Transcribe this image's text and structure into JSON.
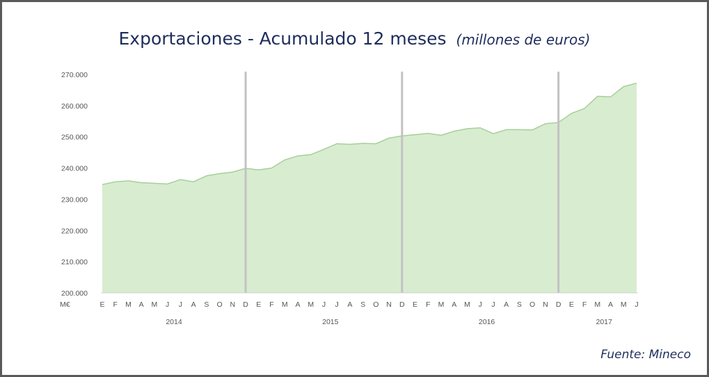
{
  "title": "Exportaciones - Acumulado 12 meses",
  "title_unit": "(millones de euros)",
  "source": "Fuente: Mineco",
  "chart_data": {
    "type": "area",
    "ylabel": "M€",
    "ylim": [
      200000,
      270000
    ],
    "yticks": [
      200000,
      210000,
      220000,
      230000,
      240000,
      250000,
      260000,
      270000
    ],
    "ytick_labels": [
      "200.000",
      "210.000",
      "220.000",
      "230.000",
      "240.000",
      "250.000",
      "260.000",
      "270.000"
    ],
    "x": [
      "2014-01",
      "2014-02",
      "2014-03",
      "2014-04",
      "2014-05",
      "2014-06",
      "2014-07",
      "2014-08",
      "2014-09",
      "2014-10",
      "2014-11",
      "2014-12",
      "2015-01",
      "2015-02",
      "2015-03",
      "2015-04",
      "2015-05",
      "2015-06",
      "2015-07",
      "2015-08",
      "2015-09",
      "2015-10",
      "2015-11",
      "2015-12",
      "2016-01",
      "2016-02",
      "2016-03",
      "2016-04",
      "2016-05",
      "2016-06",
      "2016-07",
      "2016-08",
      "2016-09",
      "2016-10",
      "2016-11",
      "2016-12",
      "2017-01",
      "2017-02",
      "2017-03",
      "2017-04",
      "2017-05",
      "2017-06"
    ],
    "month_labels": [
      "E",
      "F",
      "M",
      "A",
      "M",
      "J",
      "J",
      "A",
      "S",
      "O",
      "N",
      "D",
      "E",
      "F",
      "M",
      "A",
      "M",
      "J",
      "J",
      "A",
      "S",
      "O",
      "N",
      "D",
      "E",
      "F",
      "M",
      "A",
      "M",
      "J",
      "J",
      "A",
      "S",
      "O",
      "N",
      "D",
      "E",
      "F",
      "M",
      "A",
      "M",
      "J"
    ],
    "year_labels": [
      "2014",
      "2015",
      "2016",
      "2017"
    ],
    "values": [
      234700,
      235600,
      235900,
      235300,
      235100,
      234900,
      236300,
      235600,
      237500,
      238200,
      238700,
      239900,
      239400,
      240000,
      242600,
      243900,
      244300,
      246000,
      247800,
      247600,
      247900,
      247800,
      249600,
      250300,
      250700,
      251100,
      250500,
      251800,
      252600,
      252900,
      251000,
      252300,
      252300,
      252200,
      254200,
      254600,
      257500,
      259100,
      263000,
      262800,
      266100,
      267200
    ],
    "colors": {
      "fill": "#d8ecd0",
      "line": "#a6cf98",
      "year_separator": "#c2c2c2"
    },
    "grid": false
  }
}
